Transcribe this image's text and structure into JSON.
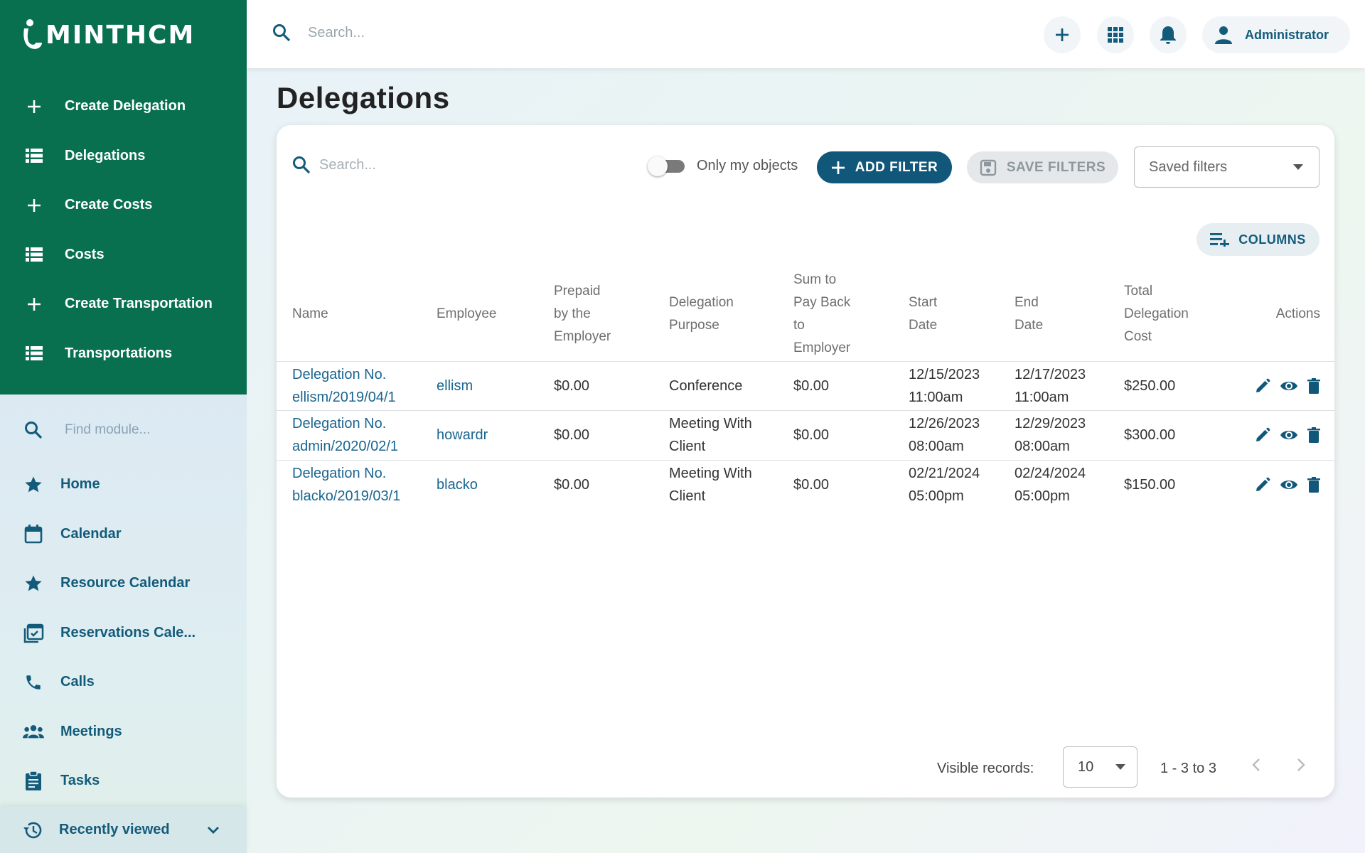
{
  "app": {
    "logo_text": "minthcm"
  },
  "sidebar": {
    "actions": [
      {
        "label": "Create Delegation",
        "icon": "plus-icon"
      },
      {
        "label": "Delegations",
        "icon": "list-icon"
      },
      {
        "label": "Create Costs",
        "icon": "plus-icon"
      },
      {
        "label": "Costs",
        "icon": "list-icon"
      },
      {
        "label": "Create Transportation",
        "icon": "plus-icon"
      },
      {
        "label": "Transportations",
        "icon": "list-icon"
      }
    ],
    "find_module_placeholder": "Find module...",
    "modules": [
      {
        "label": "Home",
        "icon": "star-icon"
      },
      {
        "label": "Calendar",
        "icon": "calendar-icon"
      },
      {
        "label": "Resource Calendar",
        "icon": "star-icon"
      },
      {
        "label": "Reservations Cale...",
        "icon": "calendar-check-icon"
      },
      {
        "label": "Calls",
        "icon": "phone-icon"
      },
      {
        "label": "Meetings",
        "icon": "people-icon"
      },
      {
        "label": "Tasks",
        "icon": "clipboard-icon"
      }
    ],
    "recently_viewed": "Recently viewed"
  },
  "topbar": {
    "search_placeholder": "Search...",
    "user_name": "Administrator"
  },
  "page": {
    "title": "Delegations",
    "search_placeholder": "Search...",
    "toggle_label": "Only my objects",
    "add_filter": "ADD FILTER",
    "save_filters": "SAVE FILTERS",
    "saved_filters": "Saved filters",
    "columns": "COLUMNS"
  },
  "table": {
    "headers": {
      "name": "Name",
      "employee": "Employee",
      "prepaid": [
        "Prepaid",
        "by the",
        "Employer"
      ],
      "purpose": [
        "Delegation",
        "Purpose"
      ],
      "sum": [
        "Sum to",
        "Pay Back",
        "to",
        "Employer"
      ],
      "start": [
        "Start",
        "Date"
      ],
      "end": [
        "End",
        "Date"
      ],
      "total": [
        "Total",
        "Delegation",
        "Cost"
      ],
      "actions": "Actions"
    },
    "rows": [
      {
        "name": [
          "Delegation No.",
          "ellism/2019/04/1"
        ],
        "employee": "ellism",
        "prepaid": "$0.00",
        "purpose": [
          "Conference"
        ],
        "sum": "$0.00",
        "start": [
          "12/15/2023",
          "11:00am"
        ],
        "end": [
          "12/17/2023",
          "11:00am"
        ],
        "total": "$250.00"
      },
      {
        "name": [
          "Delegation No.",
          "admin/2020/02/1"
        ],
        "employee": "howardr",
        "prepaid": "$0.00",
        "purpose": [
          "Meeting With",
          "Client"
        ],
        "sum": "$0.00",
        "start": [
          "12/26/2023",
          "08:00am"
        ],
        "end": [
          "12/29/2023",
          "08:00am"
        ],
        "total": "$300.00"
      },
      {
        "name": [
          "Delegation No.",
          "blacko/2019/03/1"
        ],
        "employee": "blacko",
        "prepaid": "$0.00",
        "purpose": [
          "Meeting With",
          "Client"
        ],
        "sum": "$0.00",
        "start": [
          "02/21/2024",
          "05:00pm"
        ],
        "end": [
          "02/24/2024",
          "05:00pm"
        ],
        "total": "$150.00"
      }
    ]
  },
  "pager": {
    "visible_label": "Visible records:",
    "page_size": "10",
    "range": "1 - 3 to 3"
  },
  "colors": {
    "sidebar_green": "#08704f",
    "primary_blue": "#10577a",
    "link": "#1a6590",
    "module_text": "#135b7a"
  }
}
